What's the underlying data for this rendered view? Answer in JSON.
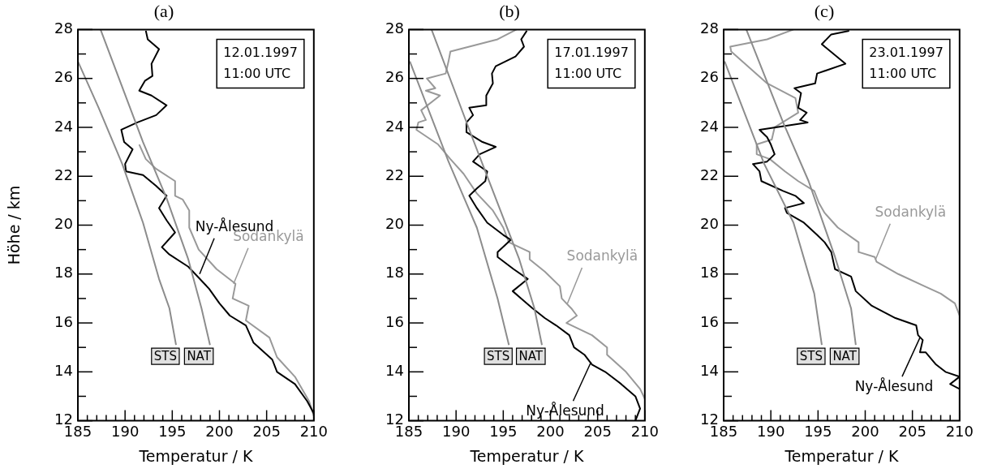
{
  "chart_data": [
    {
      "type": "line",
      "title": "(a)",
      "xlabel": "Temperatur / K",
      "ylabel": "Höhe / km",
      "xlim": [
        185,
        210
      ],
      "ylim": [
        12,
        28
      ],
      "grid": false,
      "legend": false,
      "xticks": [
        185,
        {
          "value": 186,
          "label": null
        },
        {
          "value": 187,
          "label": null
        },
        {
          "value": 188,
          "label": null
        },
        {
          "value": 189,
          "label": null
        },
        190,
        {
          "value": 191,
          "label": null
        },
        {
          "value": 192,
          "label": null
        },
        {
          "value": 193,
          "label": null
        },
        {
          "value": 194,
          "label": null
        },
        195,
        {
          "value": 196,
          "label": null
        },
        {
          "value": 197,
          "label": null
        },
        {
          "value": 198,
          "label": null
        },
        {
          "value": 199,
          "label": null
        },
        200,
        {
          "value": 201,
          "label": null
        },
        {
          "value": 202,
          "label": null
        },
        {
          "value": 203,
          "label": null
        },
        {
          "value": 204,
          "label": null
        },
        205,
        {
          "value": 206,
          "label": null
        },
        {
          "value": 207,
          "label": null
        },
        {
          "value": 208,
          "label": null
        },
        {
          "value": 209,
          "label": null
        },
        210
      ],
      "yticks": [
        12,
        {
          "value": 13,
          "label": null
        },
        14,
        {
          "value": 15,
          "label": null
        },
        16,
        {
          "value": 17,
          "label": null
        },
        18,
        {
          "value": 19,
          "label": null
        },
        20,
        {
          "value": 21,
          "label": null
        },
        22,
        {
          "value": 23,
          "label": null
        },
        24,
        {
          "value": 25,
          "label": null
        },
        26,
        {
          "value": 27,
          "label": null
        },
        28
      ],
      "series": [
        {
          "name": "STS",
          "color": "#8c8c8c",
          "x": [
            185,
            187.2,
            189.7,
            191.9,
            193.6,
            194.7,
            195.4
          ],
          "values": [
            26.7,
            24.8,
            22.5,
            20.1,
            17.8,
            16.6,
            15.1
          ]
        },
        {
          "name": "NAT",
          "color": "#8c8c8c",
          "x": [
            187.4,
            191.9,
            194.4,
            196.7,
            198.1,
            199.0
          ],
          "values": [
            28,
            23.4,
            21.1,
            18.6,
            16.6,
            15.1
          ]
        },
        {
          "color": "#000000",
          "x": [
            192.2,
            192.4,
            193.6,
            192.8,
            192.9,
            192.1,
            191.5,
            192.8,
            194.4,
            193.3,
            191.3,
            189.6,
            189.9,
            190.8,
            190.0,
            190.1,
            191.9,
            193.3,
            194.4,
            193.6,
            194.4,
            195.3,
            193.9,
            194.7,
            196.7,
            198.9,
            200.0,
            201.1,
            202.8,
            203.6,
            205.6,
            206.1,
            208.0,
            209.3,
            210.0
          ],
          "values": [
            27.95,
            27.6,
            27.2,
            26.6,
            26.1,
            25.9,
            25.5,
            25.3,
            24.9,
            24.5,
            24.2,
            23.9,
            23.4,
            23.1,
            22.5,
            22.2,
            22.05,
            21.6,
            21.2,
            20.7,
            20.2,
            19.7,
            19.1,
            18.8,
            18.3,
            17.4,
            16.8,
            16.3,
            15.9,
            15.2,
            14.5,
            14.0,
            13.5,
            12.8,
            12.3
          ]
        },
        {
          "color": "#999999",
          "x": [
            191.5,
            192.2,
            193.3,
            195.3,
            195.3,
            196.1,
            196.8,
            196.8,
            197.8,
            199.7,
            201.7,
            201.4,
            203.1,
            202.8,
            205.3,
            206.1,
            208.0,
            209.5,
            210.0
          ],
          "values": [
            23.3,
            22.7,
            22.3,
            21.8,
            21.2,
            21.05,
            20.6,
            19.9,
            19.0,
            18.2,
            17.6,
            17.0,
            16.7,
            16.1,
            15.4,
            14.6,
            13.8,
            12.8,
            12.2
          ]
        }
      ],
      "annotations": [
        "12.01.1997 11:00 UTC",
        {
          "text": "Ny-Ålesund",
          "x": 197.9,
          "y": 18.0
        },
        {
          "text": "Sodankylä",
          "x": 201.5,
          "y": 17.6
        }
      ]
    },
    {
      "type": "line",
      "title": "(b)",
      "xlabel": "Temperatur / K",
      "xlim": [
        185,
        210
      ],
      "ylim": [
        12,
        28
      ],
      "grid": false,
      "legend": false,
      "xticks": [
        185,
        {
          "value": 186,
          "label": null
        },
        {
          "value": 187,
          "label": null
        },
        {
          "value": 188,
          "label": null
        },
        {
          "value": 189,
          "label": null
        },
        190,
        {
          "value": 191,
          "label": null
        },
        {
          "value": 192,
          "label": null
        },
        {
          "value": 193,
          "label": null
        },
        {
          "value": 194,
          "label": null
        },
        195,
        {
          "value": 196,
          "label": null
        },
        {
          "value": 197,
          "label": null
        },
        {
          "value": 198,
          "label": null
        },
        {
          "value": 199,
          "label": null
        },
        200,
        {
          "value": 201,
          "label": null
        },
        {
          "value": 202,
          "label": null
        },
        {
          "value": 203,
          "label": null
        },
        {
          "value": 204,
          "label": null
        },
        205,
        {
          "value": 206,
          "label": null
        },
        {
          "value": 207,
          "label": null
        },
        {
          "value": 208,
          "label": null
        },
        {
          "value": 209,
          "label": null
        },
        210
      ],
      "yticks": [
        12,
        {
          "value": 13,
          "label": null
        },
        14,
        {
          "value": 15,
          "label": null
        },
        16,
        {
          "value": 17,
          "label": null
        },
        18,
        {
          "value": 19,
          "label": null
        },
        20,
        {
          "value": 21,
          "label": null
        },
        22,
        {
          "value": 23,
          "label": null
        },
        24,
        {
          "value": 25,
          "label": null
        },
        26,
        {
          "value": 27,
          "label": null
        },
        28
      ],
      "series": [
        {
          "name": "STS",
          "color": "#8c8c8c",
          "x": [
            185.1,
            189.2,
            192.2,
            194.4,
            195.6
          ],
          "values": [
            26.7,
            22.6,
            19.9,
            17.0,
            15.1
          ]
        },
        {
          "name": "NAT",
          "color": "#8c8c8c",
          "x": [
            187.4,
            191.7,
            194.2,
            196.7,
            198.3,
            199.1
          ],
          "values": [
            28,
            23.6,
            21.1,
            18.6,
            16.6,
            15.1
          ]
        },
        {
          "color": "#000000",
          "x": [
            197.5,
            196.9,
            197.2,
            196.3,
            194.2,
            193.8,
            193.9,
            193.2,
            193.2,
            191.4,
            191.8,
            191.1,
            191.1,
            192.8,
            194.2,
            192.5,
            191.8,
            193.3,
            193.1,
            192.2,
            191.4,
            192.2,
            193.3,
            195.0,
            195.8,
            194.4,
            194.4,
            196.1,
            197.6,
            196.0,
            196.9,
            198.1,
            199.4,
            200.6,
            202.0,
            202.5,
            203.6,
            204.4,
            205.8,
            207.5,
            209.0,
            209.5,
            209.0
          ],
          "values": [
            27.95,
            27.6,
            27.3,
            26.9,
            26.5,
            26.2,
            25.8,
            25.3,
            24.9,
            24.8,
            24.5,
            24.2,
            23.8,
            23.4,
            23.2,
            22.9,
            22.6,
            22.2,
            21.8,
            21.5,
            21.2,
            20.7,
            20.1,
            19.6,
            19.4,
            18.9,
            18.7,
            18.2,
            17.8,
            17.3,
            17.0,
            16.6,
            16.2,
            15.9,
            15.5,
            15.0,
            14.7,
            14.3,
            14.0,
            13.5,
            13.0,
            12.5,
            12.0
          ]
        },
        {
          "color": "#999999",
          "x": [
            196.4,
            194.4,
            189.4,
            189.2,
            188.9,
            186.9,
            187.8,
            186.8,
            188.3,
            186.3,
            186.8,
            186.0,
            185.8,
            188.1,
            189.4,
            190.8,
            192.2,
            193.9,
            195.0,
            195.6,
            197.8,
            197.8,
            199.4,
            201.0,
            201.2,
            202.2,
            202.8,
            201.7,
            204.4,
            206.0,
            206.0,
            208.0,
            209.5,
            210.0
          ],
          "values": [
            28,
            27.6,
            27.1,
            26.7,
            26.2,
            26.0,
            25.6,
            25.5,
            25.3,
            24.7,
            24.3,
            24.2,
            23.9,
            23.3,
            22.7,
            22.1,
            21.3,
            20.6,
            19.9,
            19.3,
            18.9,
            18.6,
            18.1,
            17.5,
            17.0,
            16.6,
            16.3,
            16.0,
            15.5,
            15.0,
            14.7,
            14.0,
            13.3,
            12.9
          ]
        }
      ],
      "annotations": [
        "17.01.1997 11:00 UTC",
        {
          "text": "Sodankylä",
          "x": 201.8,
          "y": 16.8
        },
        {
          "text": "Ny-Ålesund",
          "x": 204.3,
          "y": 14.4
        }
      ]
    },
    {
      "type": "line",
      "title": "(c)",
      "xlabel": "Temperatur / K",
      "xlim": [
        185,
        210
      ],
      "ylim": [
        12,
        28
      ],
      "grid": false,
      "legend": false,
      "xticks": [
        185,
        {
          "value": 186,
          "label": null
        },
        {
          "value": 187,
          "label": null
        },
        {
          "value": 188,
          "label": null
        },
        {
          "value": 189,
          "label": null
        },
        190,
        {
          "value": 191,
          "label": null
        },
        {
          "value": 192,
          "label": null
        },
        {
          "value": 193,
          "label": null
        },
        {
          "value": 194,
          "label": null
        },
        195,
        {
          "value": 196,
          "label": null
        },
        {
          "value": 197,
          "label": null
        },
        {
          "value": 198,
          "label": null
        },
        {
          "value": 199,
          "label": null
        },
        200,
        {
          "value": 201,
          "label": null
        },
        {
          "value": 202,
          "label": null
        },
        {
          "value": 203,
          "label": null
        },
        {
          "value": 204,
          "label": null
        },
        205,
        {
          "value": 206,
          "label": null
        },
        {
          "value": 207,
          "label": null
        },
        {
          "value": 208,
          "label": null
        },
        {
          "value": 209,
          "label": null
        },
        210
      ],
      "yticks": [
        12,
        {
          "value": 13,
          "label": null
        },
        14,
        {
          "value": 15,
          "label": null
        },
        16,
        {
          "value": 17,
          "label": null
        },
        18,
        {
          "value": 19,
          "label": null
        },
        20,
        {
          "value": 21,
          "label": null
        },
        22,
        {
          "value": 23,
          "label": null
        },
        24,
        {
          "value": 25,
          "label": null
        },
        26,
        {
          "value": 27,
          "label": null
        },
        28
      ],
      "series": [
        {
          "name": "STS",
          "color": "#8c8c8c",
          "x": [
            185.1,
            189.3,
            192.4,
            194.6,
            195.4
          ],
          "values": [
            26.7,
            22.5,
            20.1,
            17.2,
            15.1
          ]
        },
        {
          "name": "NAT",
          "color": "#8c8c8c",
          "x": [
            187.4,
            191.3,
            194.0,
            196.8,
            198.5,
            199.0
          ],
          "values": [
            28,
            24.2,
            21.8,
            18.7,
            16.6,
            15.1
          ]
        },
        {
          "color": "#000000",
          "x": [
            198.3,
            196.4,
            195.4,
            197.9,
            194.9,
            194.7,
            192.5,
            193.2,
            192.9,
            193.8,
            193.1,
            193.9,
            188.8,
            189.6,
            190.0,
            190.4,
            189.6,
            188.1,
            188.8,
            189.0,
            191.3,
            192.6,
            193.5,
            191.5,
            191.7,
            193.5,
            194.9,
            195.7,
            196.4,
            196.8,
            198.5,
            199.0,
            200.7,
            203.2,
            205.4,
            205.6,
            206.1,
            205.8,
            206.4,
            207.5,
            208.5,
            210.0,
            209.0,
            210.0
          ],
          "values": [
            27.95,
            27.8,
            27.4,
            26.6,
            26.2,
            25.8,
            25.6,
            25.4,
            24.8,
            24.6,
            24.3,
            24.2,
            23.9,
            23.6,
            23.3,
            22.9,
            22.6,
            22.5,
            22.2,
            21.8,
            21.4,
            21.2,
            20.9,
            20.7,
            20.5,
            20.1,
            19.6,
            19.3,
            18.9,
            18.2,
            17.9,
            17.3,
            16.7,
            16.2,
            15.9,
            15.5,
            15.3,
            14.8,
            14.8,
            14.3,
            14.0,
            13.8,
            13.5,
            13.3
          ]
        },
        {
          "color": "#999999",
          "x": [
            192.4,
            189.6,
            185.7,
            185.8,
            189.6,
            192.6,
            192.9,
            190.4,
            190.1,
            188.5,
            188.5,
            189.9,
            191.5,
            192.9,
            194.6,
            195.1,
            195.7,
            197.1,
            199.3,
            199.3,
            201.0,
            201.2,
            203.5,
            206.3,
            208.0,
            209.5,
            210.0
          ],
          "values": [
            28,
            27.6,
            27.3,
            27.1,
            25.8,
            25.2,
            24.6,
            24.0,
            23.5,
            23.3,
            22.9,
            22.7,
            22.2,
            21.8,
            21.4,
            20.9,
            20.5,
            19.9,
            19.3,
            18.9,
            18.7,
            18.5,
            18.0,
            17.5,
            17.2,
            16.8,
            16.3
          ]
        }
      ],
      "annotations": [
        "23.01.1997 11:00 UTC",
        {
          "text": "Sodankylä",
          "x": 201.1,
          "y": 18.6
        },
        {
          "text": "Ny-Ålesund",
          "x": 205.8,
          "y": 15.4
        }
      ]
    }
  ]
}
